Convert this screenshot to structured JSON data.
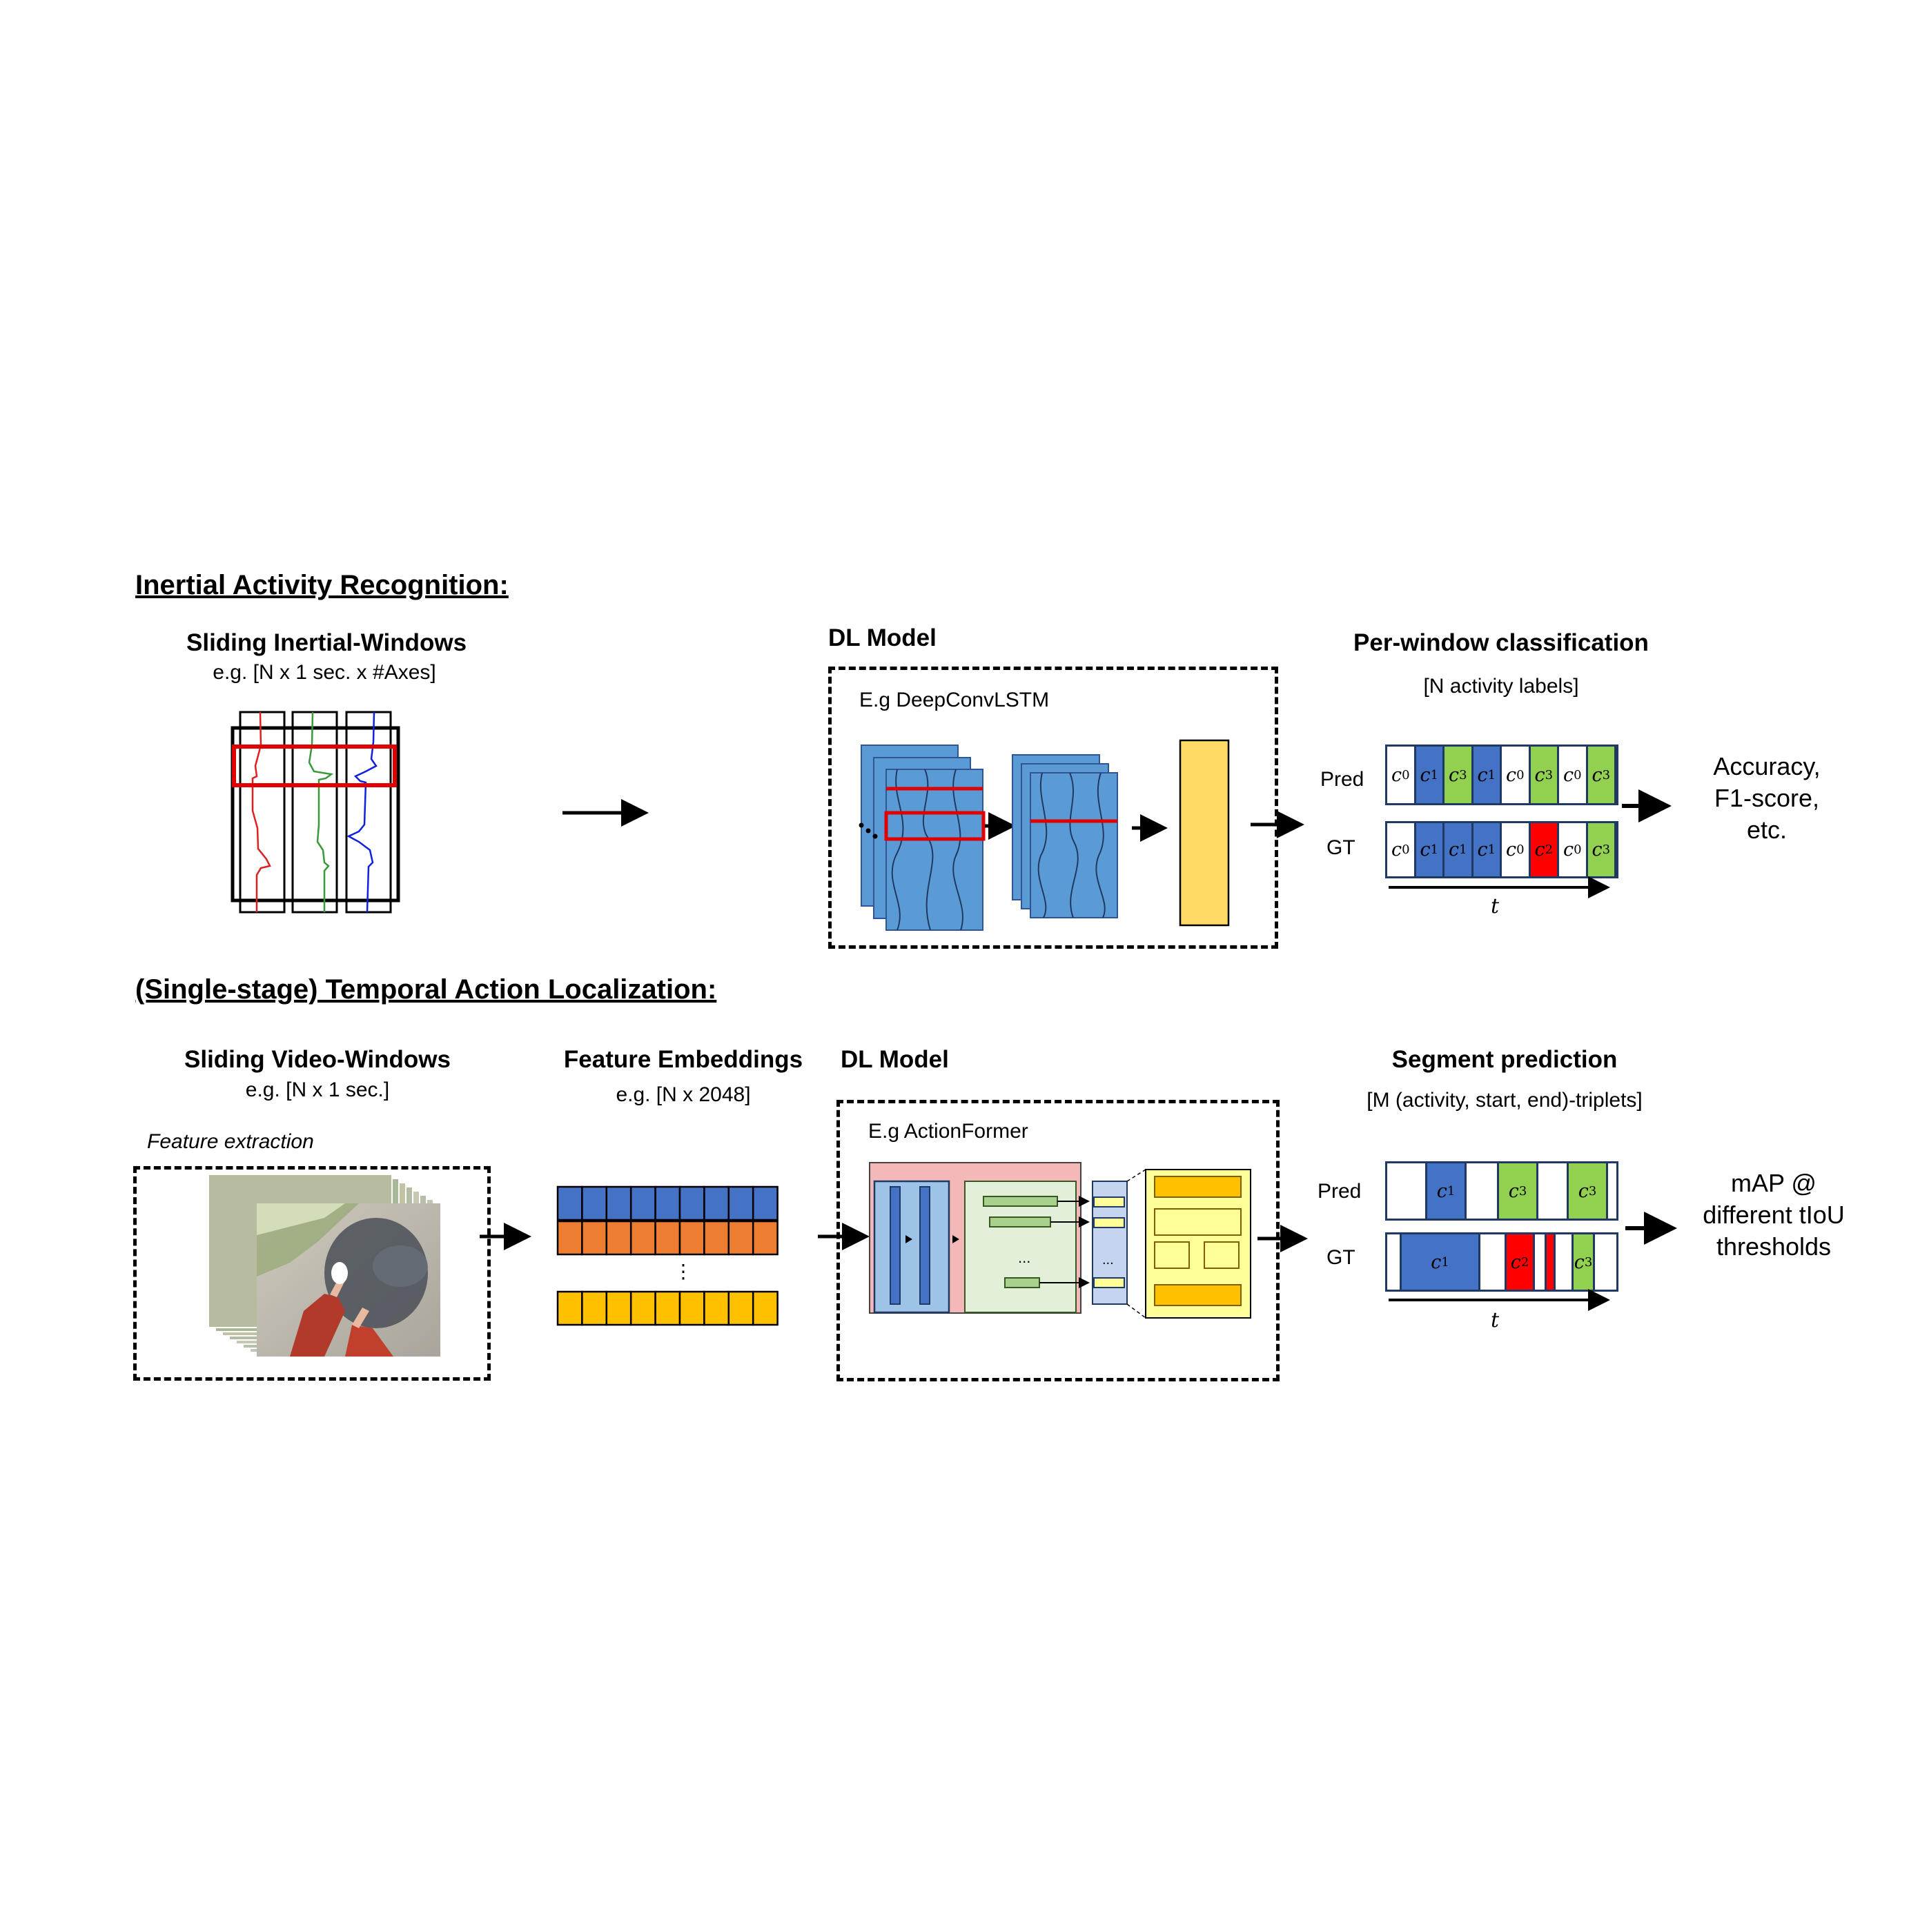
{
  "top": {
    "section_title": "Inertial Activity Recognition:",
    "input_title": "Sliding Inertial-Windows",
    "input_sub": "e.g. [N x 1 sec. x #Axes]",
    "model_title": "DL Model",
    "model_name": "E.g DeepConvLSTM",
    "output_title": "Per-window classification",
    "output_sub": "[N activity labels]",
    "pred_label": "Pred",
    "gt_label": "GT",
    "time_label": "t",
    "pred_cells": [
      {
        "c": "c",
        "n": "0",
        "color": "#ffffff"
      },
      {
        "c": "c",
        "n": "1",
        "color": "#4472c4"
      },
      {
        "c": "c",
        "n": "3",
        "color": "#92d050"
      },
      {
        "c": "c",
        "n": "1",
        "color": "#4472c4"
      },
      {
        "c": "c",
        "n": "0",
        "color": "#ffffff"
      },
      {
        "c": "c",
        "n": "3",
        "color": "#92d050"
      },
      {
        "c": "c",
        "n": "0",
        "color": "#ffffff"
      },
      {
        "c": "c",
        "n": "3",
        "color": "#92d050"
      }
    ],
    "gt_cells": [
      {
        "c": "c",
        "n": "0",
        "color": "#ffffff"
      },
      {
        "c": "c",
        "n": "1",
        "color": "#4472c4"
      },
      {
        "c": "c",
        "n": "1",
        "color": "#4472c4"
      },
      {
        "c": "c",
        "n": "1",
        "color": "#4472c4"
      },
      {
        "c": "c",
        "n": "0",
        "color": "#ffffff"
      },
      {
        "c": "c",
        "n": "2",
        "color": "#ff0000"
      },
      {
        "c": "c",
        "n": "0",
        "color": "#ffffff"
      },
      {
        "c": "c",
        "n": "3",
        "color": "#92d050"
      }
    ],
    "metric_lines": [
      "Accuracy,",
      "F1-score,",
      "etc."
    ]
  },
  "bottom": {
    "section_title": "(Single-stage) Temporal Action Localization:",
    "input_title": "Sliding Video-Windows",
    "input_sub": "e.g. [N x 1 sec.]",
    "feature_extraction": "Feature extraction",
    "embed_title": "Feature Embeddings",
    "embed_sub": "e.g. [N x 2048]",
    "embed_dots": "⋮",
    "model_title": "DL Model",
    "model_name": "E.g ActionFormer",
    "model_dots": "...",
    "output_title": "Segment prediction",
    "output_sub": "[M (activity, start, end)-triplets]",
    "pred_label": "Pred",
    "gt_label": "GT",
    "time_label": "t",
    "pred_segments": [
      {
        "c": "c",
        "n": "1",
        "color": "#4472c4"
      },
      {
        "c": "c",
        "n": "3",
        "color": "#92d050"
      },
      {
        "c": "c",
        "n": "3",
        "color": "#92d050"
      }
    ],
    "gt_segments": [
      {
        "c": "c",
        "n": "1",
        "color": "#4472c4"
      },
      {
        "c": "c",
        "n": "2",
        "color": "#ff0000"
      },
      {
        "c": "",
        "n": "",
        "color": "#ff0000"
      },
      {
        "c": "c",
        "n": "3",
        "color": "#92d050"
      }
    ],
    "metric_lines": [
      "mAP @",
      "different tIoU",
      "thresholds"
    ]
  },
  "colors": {
    "blue": "#4472c4",
    "green": "#92d050",
    "red": "#ff0000",
    "orange": "#ed7d31",
    "yellow": "#ffc000",
    "model_blue": "#5b9bd5",
    "pink": "#f4b8b8",
    "light_green": "#e2f0d9",
    "light_yellow": "#ffff99"
  }
}
